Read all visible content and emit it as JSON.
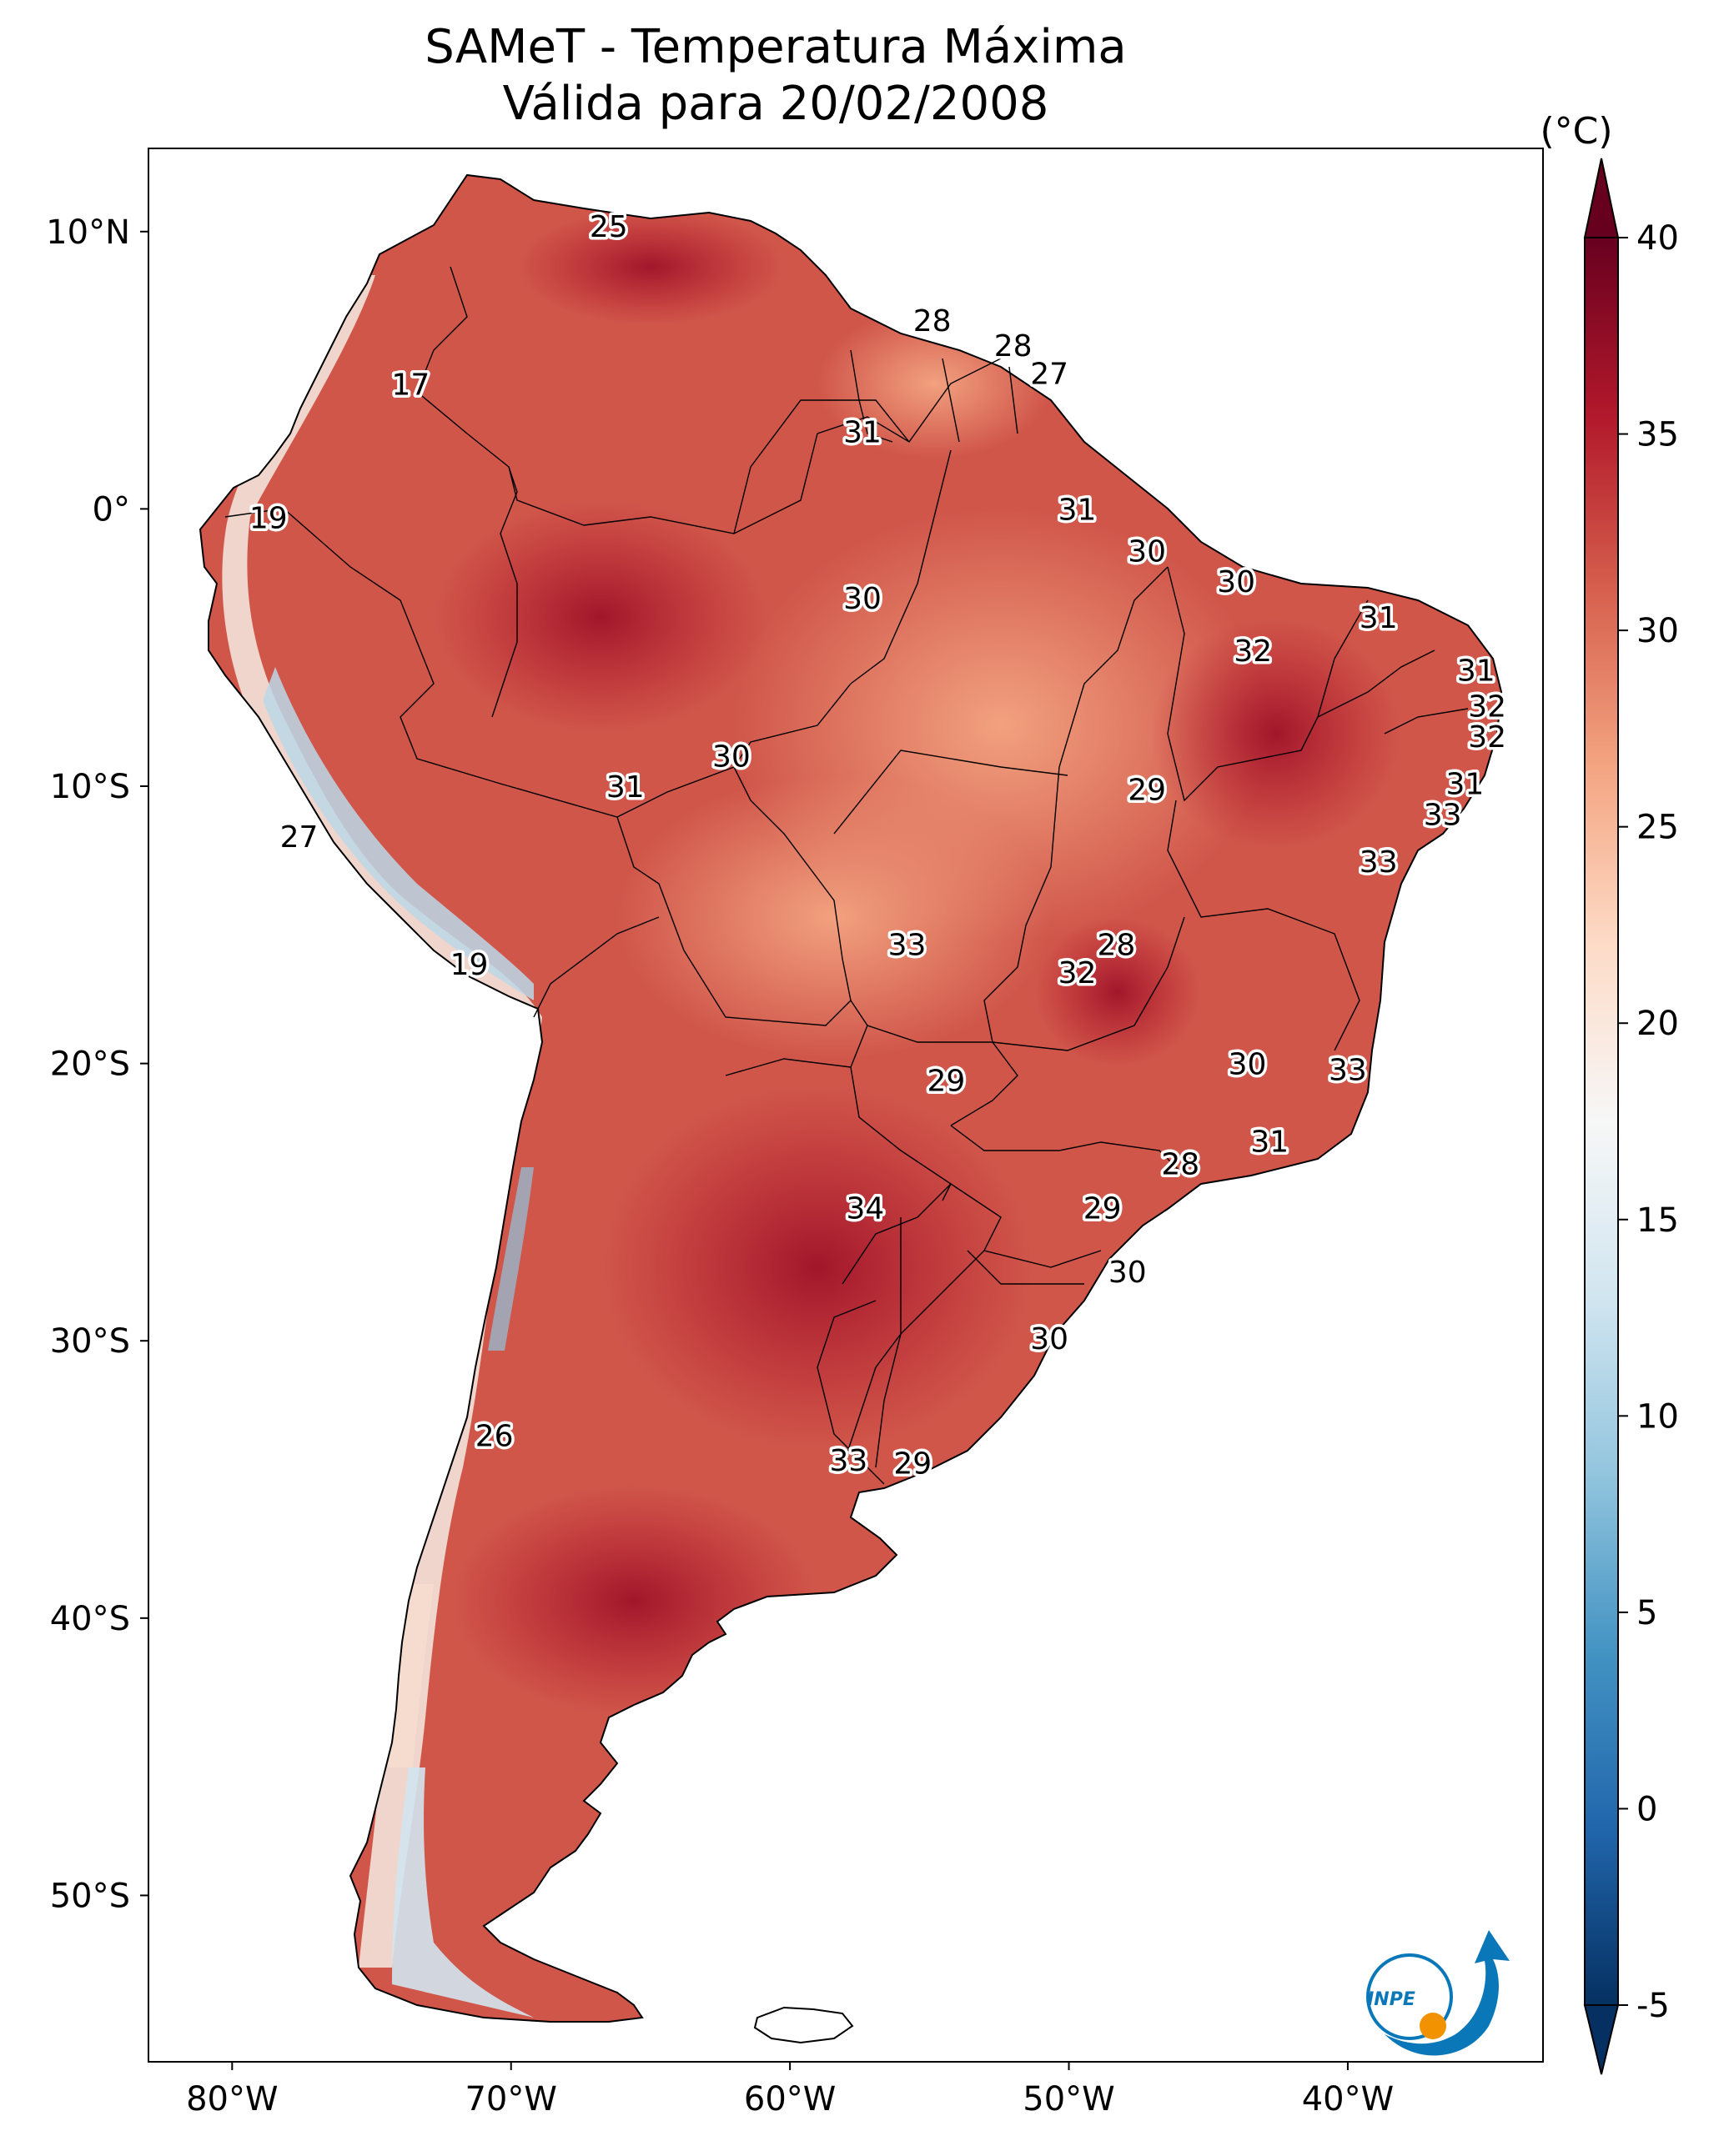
{
  "title_line1": "SAMeT - Temperatura Máxima",
  "title_line2": "Válida para 20/02/2008",
  "colorbar": {
    "unit": "(°C)",
    "ticks": [
      "-5",
      "0",
      "5",
      "10",
      "15",
      "20",
      "25",
      "30",
      "35",
      "40"
    ],
    "tick_values": [
      -5,
      0,
      5,
      10,
      15,
      20,
      25,
      30,
      35,
      40
    ],
    "range": [
      -5,
      40
    ],
    "extend": "both",
    "colors": [
      "#053061",
      "#2166ac",
      "#4393c3",
      "#92c5de",
      "#d1e5f0",
      "#f7f7f7",
      "#fddbc7",
      "#f4a582",
      "#d6604d",
      "#b2182b",
      "#67001f"
    ]
  },
  "axes": {
    "lon_range": [
      -83,
      -33
    ],
    "lat_range": [
      -56,
      13
    ],
    "lon_ticks": [
      {
        "value": -80,
        "label": "80°W"
      },
      {
        "value": -70,
        "label": "70°W"
      },
      {
        "value": -60,
        "label": "60°W"
      },
      {
        "value": -50,
        "label": "50°W"
      },
      {
        "value": -40,
        "label": "40°W"
      }
    ],
    "lat_ticks": [
      {
        "value": 10,
        "label": "10°N"
      },
      {
        "value": 0,
        "label": "0°"
      },
      {
        "value": -10,
        "label": "10°S"
      },
      {
        "value": -20,
        "label": "20°S"
      },
      {
        "value": -30,
        "label": "30°S"
      },
      {
        "value": -40,
        "label": "40°S"
      },
      {
        "value": -50,
        "label": "50°S"
      }
    ]
  },
  "logo": {
    "text": "INPE"
  },
  "colors": {
    "land_base": "#d6604d",
    "hot": "#b2182b",
    "cool": "#f4a582",
    "andes_cold": "#92c5de",
    "ocean": "#ffffff"
  },
  "chart_data": {
    "type": "map",
    "variable": "Temperatura Máxima (°C)",
    "labels": [
      {
        "lon": -66.5,
        "lat": 10.2,
        "value": "25"
      },
      {
        "lon": -73.6,
        "lat": 4.5,
        "value": "17"
      },
      {
        "lon": -78.7,
        "lat": -0.3,
        "value": "19"
      },
      {
        "lon": -77.6,
        "lat": -11.8,
        "value": "27"
      },
      {
        "lon": -71.5,
        "lat": -16.4,
        "value": "19"
      },
      {
        "lon": -70.6,
        "lat": -33.4,
        "value": "26"
      },
      {
        "lon": -54.9,
        "lat": 6.8,
        "value": "28"
      },
      {
        "lon": -52.0,
        "lat": 5.9,
        "value": "28"
      },
      {
        "lon": -50.7,
        "lat": 4.9,
        "value": "27"
      },
      {
        "lon": -57.4,
        "lat": 2.8,
        "value": "31"
      },
      {
        "lon": -49.7,
        "lat": 0.0,
        "value": "31"
      },
      {
        "lon": -47.2,
        "lat": -1.5,
        "value": "30"
      },
      {
        "lon": -57.4,
        "lat": -3.2,
        "value": "30"
      },
      {
        "lon": -44.0,
        "lat": -2.6,
        "value": "30"
      },
      {
        "lon": -38.9,
        "lat": -3.9,
        "value": "31"
      },
      {
        "lon": -43.4,
        "lat": -5.1,
        "value": "32"
      },
      {
        "lon": -35.4,
        "lat": -5.8,
        "value": "31"
      },
      {
        "lon": -35.0,
        "lat": -7.1,
        "value": "32"
      },
      {
        "lon": -35.0,
        "lat": -8.2,
        "value": "32"
      },
      {
        "lon": -35.8,
        "lat": -9.9,
        "value": "31"
      },
      {
        "lon": -36.6,
        "lat": -11.0,
        "value": "33"
      },
      {
        "lon": -38.9,
        "lat": -12.7,
        "value": "33"
      },
      {
        "lon": -62.1,
        "lat": -8.9,
        "value": "30"
      },
      {
        "lon": -65.9,
        "lat": -10.0,
        "value": "31"
      },
      {
        "lon": -47.2,
        "lat": -10.1,
        "value": "29"
      },
      {
        "lon": -55.8,
        "lat": -15.7,
        "value": "33"
      },
      {
        "lon": -48.3,
        "lat": -15.7,
        "value": "28"
      },
      {
        "lon": -49.7,
        "lat": -16.7,
        "value": "32"
      },
      {
        "lon": -54.4,
        "lat": -20.6,
        "value": "29"
      },
      {
        "lon": -43.6,
        "lat": -20.0,
        "value": "30"
      },
      {
        "lon": -40.0,
        "lat": -20.2,
        "value": "33"
      },
      {
        "lon": -42.8,
        "lat": -22.8,
        "value": "31"
      },
      {
        "lon": -46.0,
        "lat": -23.6,
        "value": "28"
      },
      {
        "lon": -57.3,
        "lat": -25.2,
        "value": "34"
      },
      {
        "lon": -48.8,
        "lat": -25.2,
        "value": "29"
      },
      {
        "lon": -47.9,
        "lat": -27.5,
        "value": "30"
      },
      {
        "lon": -50.7,
        "lat": -29.9,
        "value": "30"
      },
      {
        "lon": -57.9,
        "lat": -34.3,
        "value": "33"
      },
      {
        "lon": -55.6,
        "lat": -34.4,
        "value": "29"
      }
    ]
  }
}
